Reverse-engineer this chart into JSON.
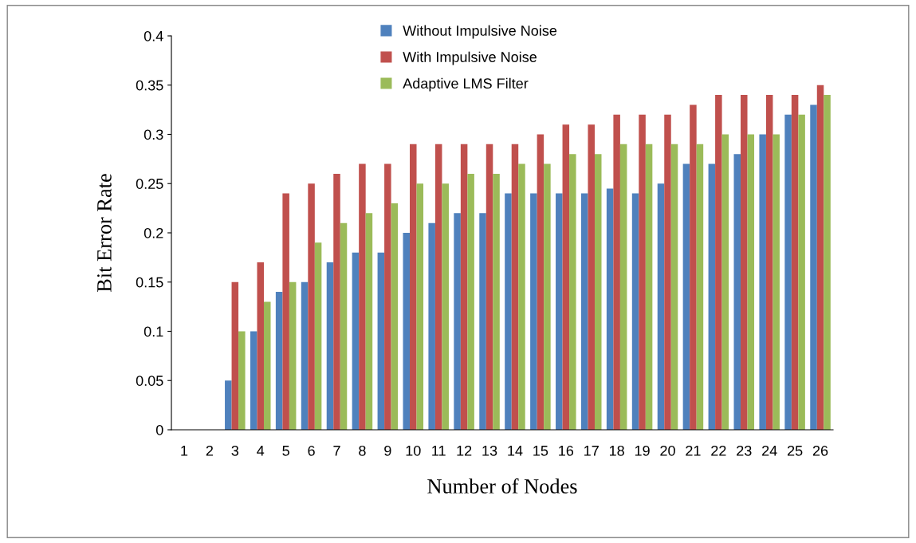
{
  "chart_data": {
    "type": "bar",
    "xlabel": "Number of Nodes",
    "ylabel": "Bit Error Rate",
    "categories": [
      "1",
      "2",
      "3",
      "4",
      "5",
      "6",
      "7",
      "8",
      "9",
      "10",
      "11",
      "12",
      "13",
      "14",
      "15",
      "16",
      "17",
      "18",
      "19",
      "20",
      "21",
      "22",
      "23",
      "24",
      "25",
      "26"
    ],
    "series": [
      {
        "name": "Without Impulsive Noise",
        "color": "#4f81bd",
        "values": [
          0,
          0,
          0.05,
          0.1,
          0.14,
          0.15,
          0.17,
          0.18,
          0.18,
          0.2,
          0.21,
          0.22,
          0.22,
          0.24,
          0.24,
          0.24,
          0.24,
          0.245,
          0.24,
          0.25,
          0.27,
          0.27,
          0.28,
          0.3,
          0.32,
          0.33
        ]
      },
      {
        "name": "With Impulsive Noise",
        "color": "#c0504d",
        "values": [
          0,
          0,
          0.15,
          0.17,
          0.24,
          0.25,
          0.26,
          0.27,
          0.27,
          0.29,
          0.29,
          0.29,
          0.29,
          0.29,
          0.3,
          0.31,
          0.31,
          0.32,
          0.32,
          0.32,
          0.33,
          0.34,
          0.34,
          0.34,
          0.34,
          0.35
        ]
      },
      {
        "name": "Adaptive LMS Filter",
        "color": "#9bbb59",
        "values": [
          0,
          0,
          0.1,
          0.13,
          0.15,
          0.19,
          0.21,
          0.22,
          0.23,
          0.25,
          0.25,
          0.26,
          0.26,
          0.27,
          0.27,
          0.28,
          0.28,
          0.29,
          0.29,
          0.29,
          0.29,
          0.3,
          0.3,
          0.3,
          0.32,
          0.34
        ]
      }
    ],
    "ylim": [
      0,
      0.4
    ],
    "yticks": [
      0,
      0.05,
      0.1,
      0.15,
      0.2,
      0.25,
      0.3,
      0.35,
      0.4
    ],
    "grid": false,
    "legend": "top"
  }
}
